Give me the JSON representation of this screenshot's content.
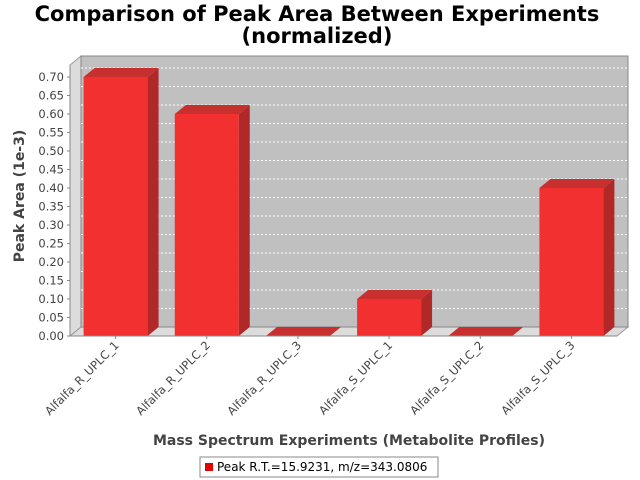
{
  "chart_data": {
    "type": "bar",
    "title_line1": "Comparison of Peak Area Between Experiments",
    "title_line2": "(normalized)",
    "xlabel": "Mass Spectrum Experiments (Metabolite Profiles)",
    "ylabel": "Peak Area (1e-3)",
    "categories": [
      "Alfalfa_R_UPLC_1",
      "Alfalfa_R_UPLC_2",
      "Alfalfa_R_UPLC_3",
      "Alfalfa_S_UPLC_1",
      "Alfalfa_S_UPLC_2",
      "Alfalfa_S_UPLC_3"
    ],
    "series": [
      {
        "name": "Peak R.T.=15.9231, m/z=343.0806",
        "values": [
          0.7,
          0.6,
          0.0,
          0.1,
          0.0,
          0.4
        ]
      }
    ],
    "ylim": [
      0,
      0.7
    ],
    "yticks": [
      "0.00",
      "0.05",
      "0.10",
      "0.15",
      "0.20",
      "0.25",
      "0.30",
      "0.35",
      "0.40",
      "0.45",
      "0.50",
      "0.55",
      "0.60",
      "0.65",
      "0.70"
    ],
    "grid": true,
    "legend_position": "bottom-center",
    "colors": {
      "bar_front": "#f23030",
      "bar_side": "#b02828",
      "bar_top": "#c83030",
      "plot_bg": "#c0c0c0",
      "wall": "#dcdcdc",
      "floor": "#dcdcdc"
    }
  }
}
